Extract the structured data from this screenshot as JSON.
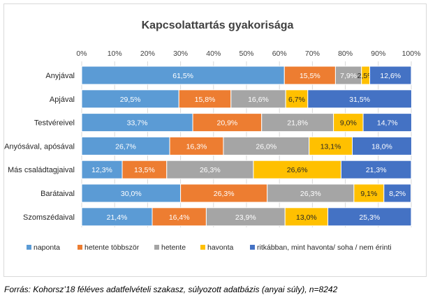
{
  "chart_data": {
    "type": "bar",
    "orientation": "horizontal",
    "stacked": "percent",
    "title": "Kapcsolattartás gyakorisága",
    "x_ticks": [
      "0%",
      "10%",
      "20%",
      "30%",
      "40%",
      "50%",
      "60%",
      "70%",
      "80%",
      "90%",
      "100%"
    ],
    "xlim": [
      0,
      100
    ],
    "legend_position": "bottom",
    "grid": true,
    "categories": [
      "Anyjával",
      "Apjával",
      "Testvéreivel",
      "Anyósával, apósával",
      "Más családtagjaival",
      "Barátaival",
      "Szomszédaival"
    ],
    "series": [
      {
        "name": "naponta",
        "color": "#5b9bd5",
        "values": [
          61.5,
          29.5,
          33.7,
          26.7,
          12.3,
          30.0,
          21.4
        ],
        "labels": [
          "61,5%",
          "29,5%",
          "33,7%",
          "26,7%",
          "12,3%",
          "30,0%",
          "21,4%"
        ]
      },
      {
        "name": "hetente többször",
        "color": "#ed7d31",
        "values": [
          15.5,
          15.8,
          20.9,
          16.3,
          13.5,
          26.3,
          16.4
        ],
        "labels": [
          "15,5%",
          "15,8%",
          "20,9%",
          "16,3%",
          "13,5%",
          "26,3%",
          "16,4%"
        ]
      },
      {
        "name": "hetente",
        "color": "#a5a5a5",
        "values": [
          7.9,
          16.6,
          21.8,
          26.0,
          26.3,
          26.3,
          23.9
        ],
        "labels": [
          "7,9%",
          "16,6%",
          "21,8%",
          "26,0%",
          "26,3%",
          "26,3%",
          "23,9%"
        ]
      },
      {
        "name": "havonta",
        "color": "#ffc000",
        "values": [
          2.5,
          6.7,
          9.0,
          13.1,
          26.6,
          9.1,
          13.0
        ],
        "labels": [
          "2,5%",
          "6,7%",
          "9,0%",
          "13,1%",
          "26,6%",
          "9,1%",
          "13,0%"
        ]
      },
      {
        "name": "ritkábban, mint havonta/ soha / nem érinti",
        "color": "#4472c4",
        "values": [
          12.6,
          31.5,
          14.7,
          18.0,
          21.3,
          8.2,
          25.3
        ],
        "labels": [
          "12,6%",
          "31,5%",
          "14,7%",
          "18,0%",
          "21,3%",
          "8,2%",
          "25,3%"
        ]
      }
    ]
  },
  "source_note": "Forrás: Kohorsz’18 féléves adatfelvételi szakasz, súlyozott adatbázis (anyai súly), n=8242"
}
